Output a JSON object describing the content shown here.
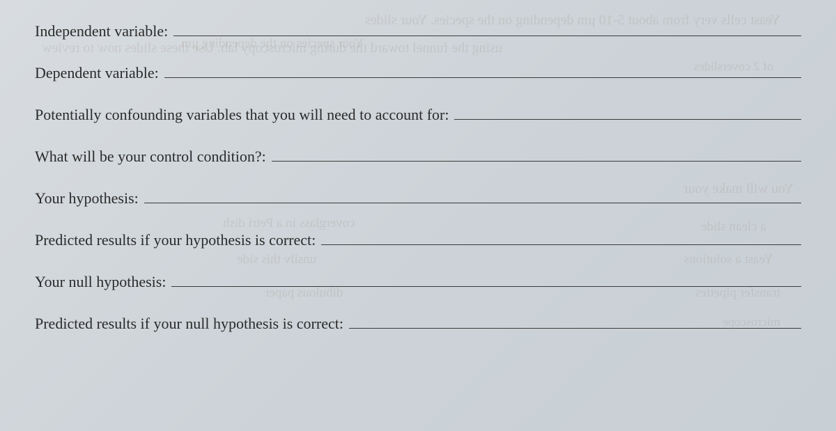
{
  "worksheet": {
    "fields": [
      {
        "label": "Independent variable:"
      },
      {
        "label": "Dependent variable:"
      },
      {
        "label": "Potentially confounding variables that you will need to account for:"
      },
      {
        "label": "What will be your control condition?:"
      },
      {
        "label": "Your hypothesis:"
      },
      {
        "label": "Predicted results if your hypothesis is correct:"
      },
      {
        "label": "Your null hypothesis:"
      },
      {
        "label": "Predicted results if your null hypothesis is correct:"
      }
    ]
  },
  "ghost_bleed": {
    "g1": "Yeast cells very from about 5-10 μm depending on the species. Your slides",
    "g2": "Your species on the depending μm",
    "g3": "using the funnel toward the during microscopy lab. Use these slides now to review",
    "g4": "You will make your",
    "g5": "coverglass in a Petri dish",
    "g6": "a clean slide",
    "g7": "unsilv this side",
    "g8": "Yeast a solutions",
    "g9": "dibulous paper",
    "g10": "transfer pipettes",
    "g11": "microscope",
    "g12": "of 2 coverslides"
  },
  "style": {
    "background_gradient": [
      "#d8dce0",
      "#cdd3d8",
      "#c8cfd5"
    ],
    "label_color": "#2a2a2a",
    "label_fontsize": 22,
    "line_color": "#3a3a3a",
    "ghost_color": "rgba(150, 130, 110, 0.18)",
    "font_family": "Georgia, Times New Roman, serif",
    "row_gap": 32
  }
}
